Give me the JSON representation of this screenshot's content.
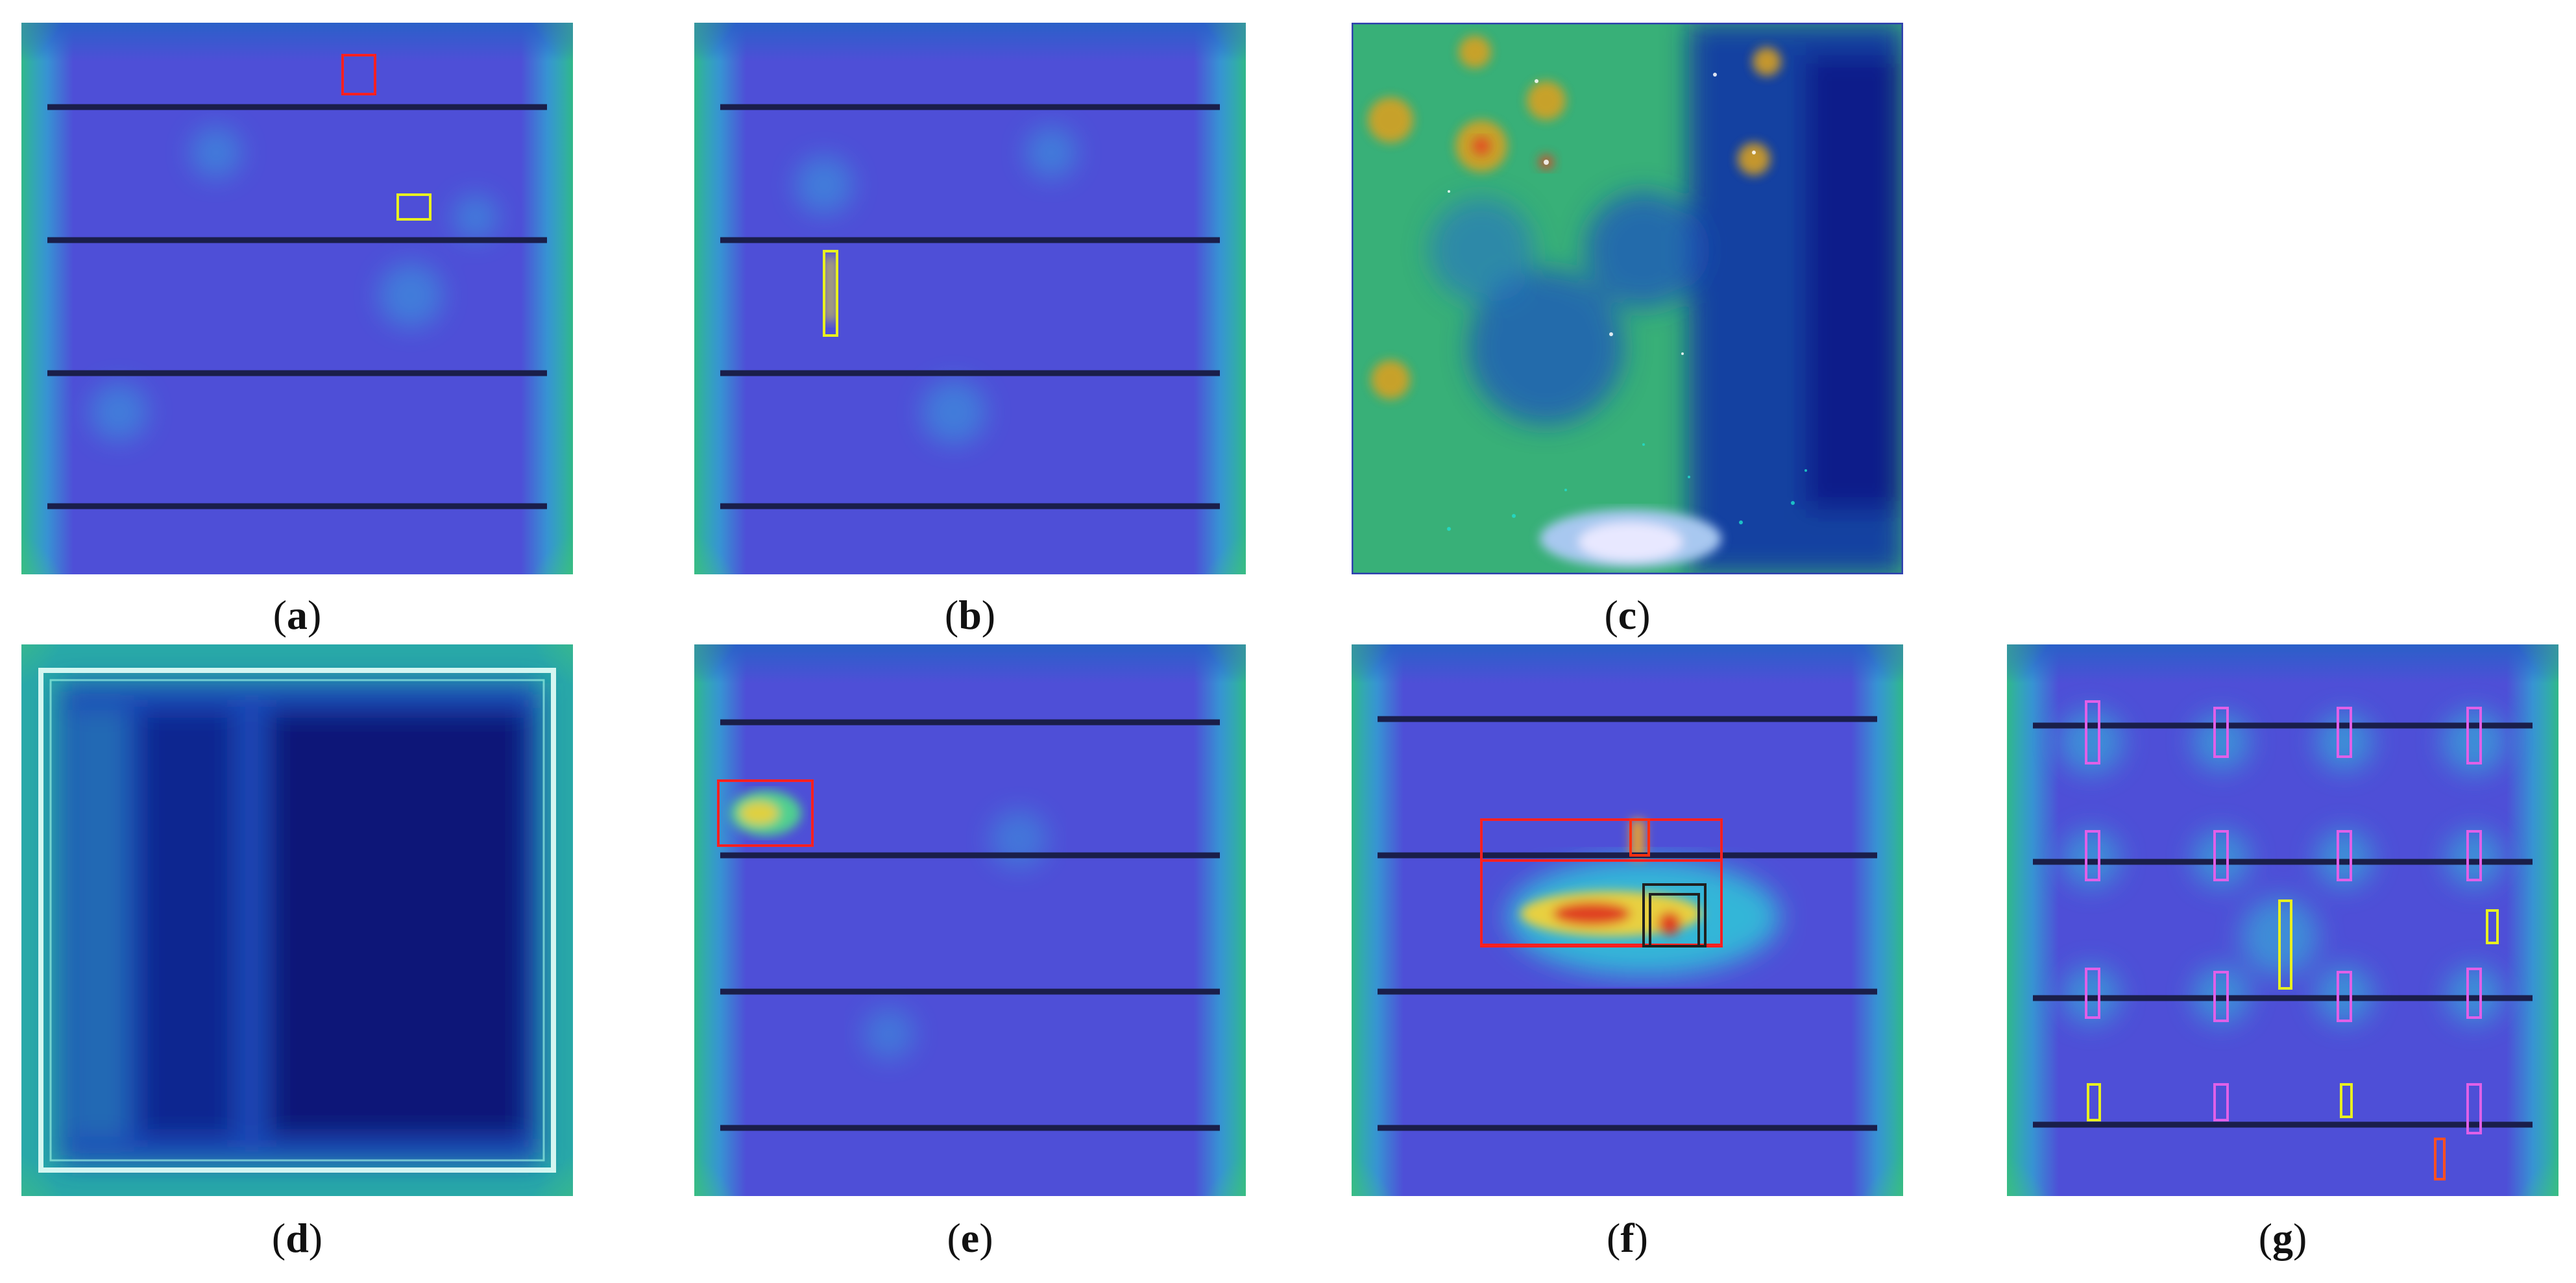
{
  "figure": {
    "panels": [
      {
        "id": "a",
        "label": "a",
        "kind": "solar-cell-heatmap-with-busbars",
        "boxes": [
          "red",
          "yellow"
        ]
      },
      {
        "id": "b",
        "label": "b",
        "kind": "solar-cell-heatmap-with-busbars",
        "boxes": [
          "yellow"
        ]
      },
      {
        "id": "c",
        "label": "c",
        "kind": "speckled-heatmap",
        "boxes": []
      },
      {
        "id": "d",
        "label": "d",
        "kind": "dark-cell-heatmap",
        "boxes": []
      },
      {
        "id": "e",
        "label": "e",
        "kind": "solar-cell-heatmap-with-busbars",
        "boxes": [
          "red"
        ]
      },
      {
        "id": "f",
        "label": "f",
        "kind": "solar-cell-heatmap-with-hotspot",
        "boxes": [
          "red",
          "red",
          "red",
          "black",
          "black"
        ]
      },
      {
        "id": "g",
        "label": "g",
        "kind": "solar-cell-heatmap-grid-defects",
        "boxes": [
          "pink",
          "yellow",
          "orange"
        ]
      }
    ]
  },
  "colors": {
    "heat_blue": "#3a3fd0",
    "heat_deep_blue": "#0a1a8a",
    "heat_cyan": "#2ad0e0",
    "heat_green": "#30b070",
    "heat_yellow": "#f0e030",
    "heat_red": "#d02020",
    "busbar": "#1a1e4a",
    "box_red": "#ff2020",
    "box_yellow": "#e8f020",
    "box_pink": "#e060e8",
    "box_black": "#202020",
    "box_orange": "#ff5020"
  }
}
